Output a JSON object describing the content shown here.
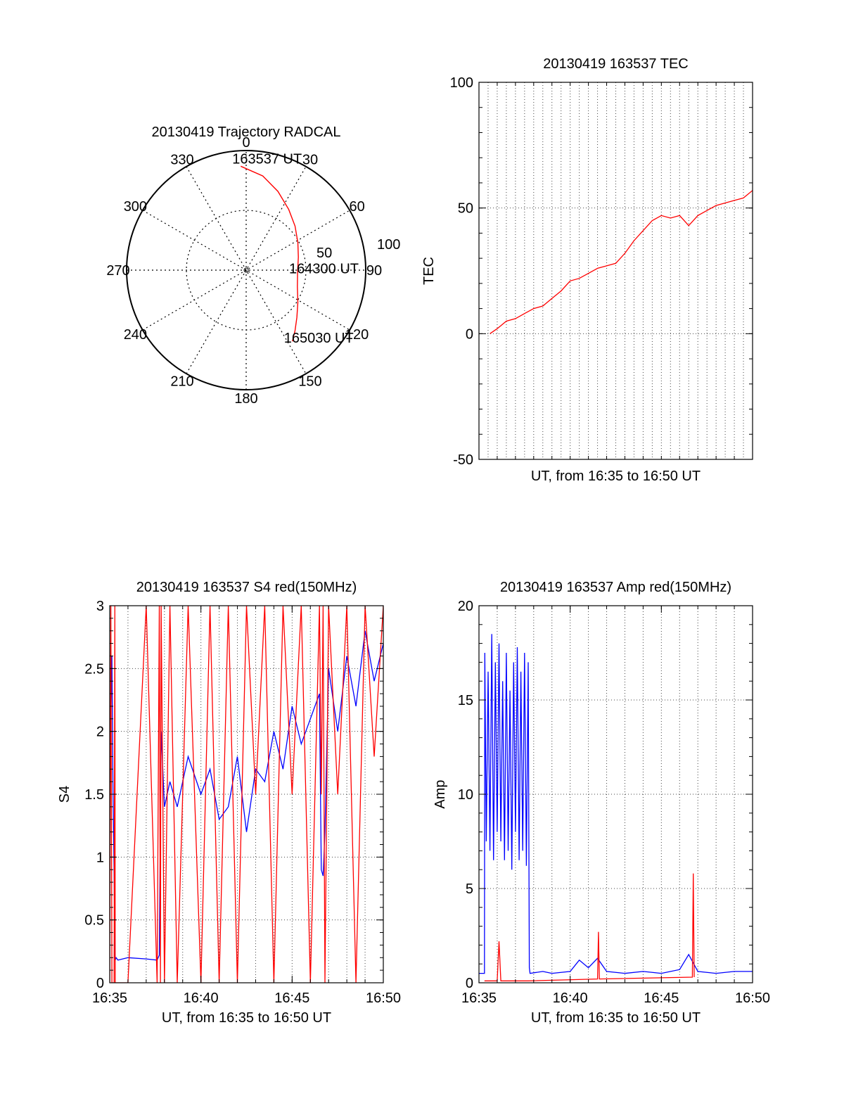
{
  "chart_data": [
    {
      "type": "polar",
      "title": "20130419 Trajectory RADCAL",
      "angle_labels": [
        "0",
        "30",
        "60",
        "90",
        "120",
        "150",
        "180",
        "210",
        "240",
        "270",
        "300",
        "330"
      ],
      "radius_labels": [
        "50",
        "100"
      ],
      "rlim": [
        0,
        100
      ],
      "grid": true,
      "series": [
        {
          "color": "#ff0000",
          "points": [
            {
              "azimuth": -3,
              "radius": 87
            },
            {
              "azimuth": 10,
              "radius": 80
            },
            {
              "azimuth": 22,
              "radius": 71
            },
            {
              "azimuth": 35,
              "radius": 62
            },
            {
              "azimuth": 48,
              "radius": 55
            },
            {
              "azimuth": 62,
              "radius": 49
            },
            {
              "azimuth": 76,
              "radius": 45
            },
            {
              "azimuth": 92,
              "radius": 43
            },
            {
              "azimuth": 108,
              "radius": 45
            },
            {
              "azimuth": 122,
              "radius": 51
            },
            {
              "azimuth": 133,
              "radius": 58
            },
            {
              "azimuth": 141,
              "radius": 65
            },
            {
              "azimuth": 147,
              "radius": 71
            }
          ]
        }
      ],
      "annotations": [
        {
          "text": "163537 UT",
          "azimuth": -3,
          "radius": 87
        },
        {
          "text": "164300 UT",
          "azimuth": 92,
          "radius": 43
        },
        {
          "text": "165030 UT",
          "azimuth": 147,
          "radius": 71
        }
      ]
    },
    {
      "type": "line",
      "title": "20130419 163537 TEC",
      "xlabel": "UT, from 16:35 to 16:50 UT",
      "ylabel": "TEC",
      "xlim": [
        0,
        15
      ],
      "ylim": [
        -50,
        100
      ],
      "yticks": [
        "-50",
        "0",
        "50",
        "100"
      ],
      "grid": true,
      "series": [
        {
          "color": "#ff0000",
          "x": [
            0.6,
            1.0,
            1.5,
            2.0,
            2.5,
            3.0,
            3.5,
            4.0,
            4.5,
            5.0,
            5.5,
            6.0,
            6.5,
            7.0,
            7.5,
            8.0,
            8.5,
            9.0,
            9.5,
            10.0,
            10.5,
            11.0,
            11.5,
            12.0,
            12.5,
            13.0,
            13.5,
            14.0,
            14.5,
            15.0
          ],
          "values": [
            0,
            2,
            5,
            6,
            8,
            10,
            11,
            14,
            17,
            21,
            22,
            24,
            26,
            27,
            28,
            32,
            37,
            41,
            45,
            47,
            46,
            47,
            43,
            47,
            49,
            51,
            52,
            53,
            54,
            57
          ]
        }
      ]
    },
    {
      "type": "line",
      "title": "20130419 163537 S4 red(150MHz)",
      "xlabel": "UT, from 16:35 to 16:50 UT",
      "ylabel": "S4",
      "xlim": [
        0,
        15
      ],
      "ylim": [
        0,
        3
      ],
      "xticks": [
        "16:35",
        "16:40",
        "16:45",
        "16:50"
      ],
      "yticks": [
        "0",
        "0.5",
        "1",
        "1.5",
        "2",
        "2.5",
        "3"
      ],
      "grid": true,
      "series": [
        {
          "color": "#0000ff",
          "x": [
            0.0,
            0.06,
            0.12,
            0.18,
            0.24,
            0.28,
            0.3,
            0.35,
            0.45,
            1.0,
            2.0,
            2.6,
            2.72,
            2.78,
            2.82,
            3.0,
            3.3,
            3.7,
            4.3,
            5.0,
            5.5,
            6.0,
            6.5,
            7.0,
            7.5,
            8.0,
            8.5,
            9.0,
            9.5,
            10.0,
            10.5,
            11.0,
            11.5,
            11.6,
            11.7,
            11.8,
            12.0,
            12.5,
            13.0,
            13.5,
            14.0,
            14.5,
            15.0
          ],
          "values": [
            1.2,
            2.1,
            2.6,
            1.5,
            0.9,
            0.2,
            0.18,
            0.2,
            0.18,
            0.2,
            0.19,
            0.18,
            0.22,
            1.3,
            2.0,
            1.4,
            1.6,
            1.4,
            1.8,
            1.5,
            1.7,
            1.3,
            1.4,
            1.8,
            1.2,
            1.7,
            1.6,
            2.0,
            1.7,
            2.2,
            1.9,
            2.1,
            2.3,
            0.9,
            0.85,
            1.2,
            2.5,
            2.0,
            2.6,
            2.2,
            2.8,
            2.4,
            2.7
          ]
        },
        {
          "color": "#ff0000",
          "x": [
            0.0,
            0.06,
            0.12,
            0.18,
            0.24,
            0.28,
            0.3,
            0.35,
            0.45,
            1.0,
            2.0,
            2.6,
            2.72,
            2.78,
            2.82,
            3.0,
            3.3,
            3.7,
            4.3,
            5.0,
            5.5,
            6.0,
            6.5,
            7.0,
            7.5,
            8.0,
            8.5,
            9.0,
            9.5,
            10.0,
            10.5,
            11.0,
            11.5,
            11.6,
            11.7,
            11.8,
            12.0,
            12.5,
            13.0,
            13.5,
            14.0,
            14.5,
            15.0
          ],
          "values": [
            0,
            3,
            0,
            0,
            0,
            3,
            0,
            0,
            0,
            0,
            3,
            0,
            3,
            0,
            3,
            0,
            3,
            0,
            3,
            0,
            3,
            0,
            3,
            0,
            3,
            1.5,
            3,
            0,
            3,
            1.5,
            3,
            0,
            3,
            1.5,
            3,
            0,
            3,
            1.5,
            3,
            0,
            3,
            1.8,
            3
          ]
        }
      ]
    },
    {
      "type": "line",
      "title": "20130419 163537 Amp red(150MHz)",
      "xlabel": "UT, from 16:35 to 16:50 UT",
      "ylabel": "Amp",
      "xlim": [
        0,
        15
      ],
      "ylim": [
        0,
        20
      ],
      "xticks": [
        "16:35",
        "16:40",
        "16:45",
        "16:50"
      ],
      "yticks": [
        "0",
        "5",
        "10",
        "15",
        "20"
      ],
      "grid": true,
      "series": [
        {
          "color": "#0000ff",
          "x": [
            0.0,
            0.1,
            0.2,
            0.3,
            0.32,
            0.4,
            0.5,
            0.6,
            0.7,
            0.8,
            0.9,
            1.0,
            1.1,
            1.2,
            1.3,
            1.4,
            1.5,
            1.6,
            1.7,
            1.8,
            1.9,
            2.0,
            2.1,
            2.2,
            2.3,
            2.4,
            2.5,
            2.6,
            2.7,
            2.76,
            2.8,
            3.5,
            4.0,
            5.0,
            5.5,
            6.0,
            6.5,
            7.0,
            8.0,
            9.0,
            10.0,
            11.0,
            11.5,
            12.0,
            13.0,
            14.0,
            15.0
          ],
          "values": [
            0.5,
            0.5,
            0.5,
            0.5,
            17.5,
            7.5,
            16.5,
            7.0,
            18.5,
            6.5,
            17.0,
            8.0,
            18.0,
            7.5,
            16.0,
            6.5,
            17.5,
            7.0,
            15.5,
            6.0,
            17.0,
            8.0,
            17.8,
            6.5,
            16.5,
            7.0,
            17.5,
            6.2,
            17.0,
            0.8,
            0.5,
            0.6,
            0.5,
            0.6,
            1.2,
            0.8,
            1.3,
            0.6,
            0.5,
            0.6,
            0.5,
            0.7,
            1.5,
            0.6,
            0.5,
            0.6,
            0.6
          ]
        },
        {
          "color": "#ff0000",
          "x": [
            0.3,
            1.0,
            1.1,
            1.2,
            2.7,
            6.5,
            6.55,
            6.6,
            11.7,
            11.75,
            11.8
          ],
          "values": [
            0.1,
            0.1,
            2.2,
            0.1,
            0.1,
            0.2,
            2.7,
            0.2,
            0.3,
            5.8,
            0.3
          ]
        }
      ]
    }
  ]
}
